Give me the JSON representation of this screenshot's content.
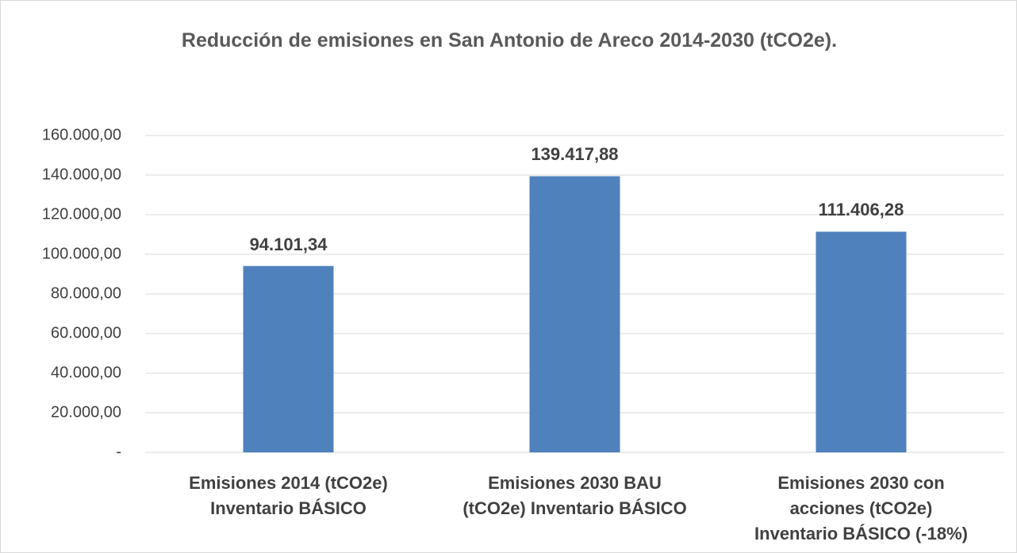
{
  "chart_data": {
    "type": "bar",
    "title": "Reducción de emisiones en San Antonio de Areco 2014-2030 (tCO2e).",
    "categories": [
      "Emisiones 2014 (tCO2e) Inventario BÁSICO",
      "Emisiones 2030 BAU (tCO2e) Inventario BÁSICO",
      "Emisiones 2030 con acciones (tCO2e) Inventario BÁSICO (-18%)"
    ],
    "values": [
      94101.34,
      139417.88,
      111406.28
    ],
    "value_labels": [
      "94.101,34",
      "139.417,88",
      "111.406,28"
    ],
    "color": "#4f81bd",
    "ylim": [
      0,
      160000
    ],
    "yticks": [
      {
        "value": 0,
        "label": "-"
      },
      {
        "value": 20000,
        "label": "20.000,00"
      },
      {
        "value": 40000,
        "label": "40.000,00"
      },
      {
        "value": 60000,
        "label": "60.000,00"
      },
      {
        "value": 80000,
        "label": "80.000,00"
      },
      {
        "value": 100000,
        "label": "100.000,00"
      },
      {
        "value": 120000,
        "label": "120.000,00"
      },
      {
        "value": 140000,
        "label": "140.000,00"
      },
      {
        "value": 160000,
        "label": "160.000,00"
      }
    ],
    "grid": true
  }
}
